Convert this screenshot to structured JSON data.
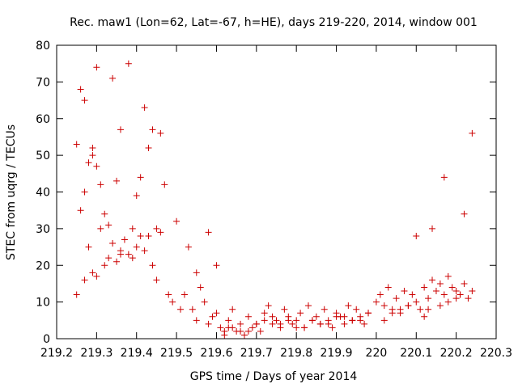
{
  "chart_data": {
    "type": "scatter",
    "title": "Rec. maw1 (Lon=62, Lat=-67, h=HE), days 219-220, 2014, window 001",
    "xlabel": "GPS time / Days of year 2014",
    "ylabel": "STEC from uqrg / TECUs",
    "xlim": [
      219.2,
      220.3
    ],
    "ylim": [
      0,
      80
    ],
    "xticks": [
      219.2,
      219.3,
      219.4,
      219.5,
      219.6,
      219.7,
      219.8,
      219.9,
      220.0,
      220.1,
      220.2,
      220.3
    ],
    "xtick_labels": [
      "219.2",
      "219.3",
      "219.4",
      "219.5",
      "219.6",
      "219.7",
      "219.8",
      "219.9",
      "220",
      "220.1",
      "220.2",
      "220.3"
    ],
    "yticks": [
      0,
      10,
      20,
      30,
      40,
      50,
      60,
      70,
      80
    ],
    "ytick_labels": [
      "0",
      "10",
      "20",
      "30",
      "40",
      "50",
      "60",
      "70",
      "80"
    ],
    "grid": false,
    "marker": "+",
    "color": "#cc0000",
    "series": [
      {
        "name": "STEC",
        "x": [
          219.25,
          219.25,
          219.26,
          219.27,
          219.28,
          219.29,
          219.29,
          219.3,
          219.31,
          219.32,
          219.34,
          219.35,
          219.36,
          219.38,
          219.42,
          219.43,
          219.44,
          219.46,
          219.47,
          219.41,
          219.4,
          219.39,
          219.37,
          219.33,
          219.3,
          219.27,
          219.26,
          219.28,
          219.31,
          219.34,
          219.36,
          219.39,
          219.41,
          219.44,
          219.45,
          219.48,
          219.49,
          219.5,
          219.51,
          219.53,
          219.55,
          219.56,
          219.58,
          219.6,
          219.52,
          219.54,
          219.57,
          219.59,
          219.61,
          219.62,
          219.63,
          219.64,
          219.65,
          219.66,
          219.67,
          219.68,
          219.69,
          219.7,
          219.71,
          219.72,
          219.73,
          219.74,
          219.75,
          219.76,
          219.77,
          219.78,
          219.79,
          219.8,
          219.81,
          219.82,
          219.83,
          219.84,
          219.85,
          219.86,
          219.87,
          219.88,
          219.89,
          219.9,
          219.91,
          219.92,
          219.93,
          219.94,
          219.95,
          219.96,
          219.97,
          219.98,
          220.0,
          220.01,
          220.02,
          220.03,
          220.04,
          220.05,
          220.06,
          220.07,
          220.08,
          220.09,
          220.1,
          220.11,
          220.12,
          220.13,
          220.14,
          220.15,
          220.16,
          220.17,
          220.18,
          220.19,
          220.2,
          220.21,
          220.22,
          220.23,
          220.24,
          220.1,
          220.14,
          220.17,
          220.22,
          220.24,
          219.62,
          219.64,
          219.66,
          219.7,
          219.74,
          219.78,
          219.82,
          219.86,
          219.9,
          219.94,
          219.98,
          220.02,
          220.06,
          220.12,
          220.16,
          220.2,
          219.55,
          219.58,
          219.6,
          219.63,
          219.68,
          219.72,
          219.76,
          219.8,
          219.84,
          219.88,
          219.92,
          219.96,
          220.04,
          220.08,
          220.13,
          220.18,
          220.21,
          219.27,
          219.3,
          219.33,
          219.36,
          219.4,
          219.43,
          219.46,
          219.29,
          219.32,
          219.35,
          219.38,
          219.42,
          219.45
        ],
        "y": [
          53,
          12,
          68,
          65,
          48,
          52,
          50,
          74,
          42,
          34,
          71,
          43,
          57,
          75,
          63,
          52,
          57,
          56,
          42,
          44,
          39,
          30,
          27,
          31,
          47,
          40,
          35,
          25,
          30,
          26,
          23,
          22,
          28,
          20,
          16,
          12,
          10,
          32,
          8,
          25,
          18,
          14,
          29,
          20,
          12,
          8,
          10,
          6,
          3,
          2,
          5,
          8,
          2,
          4,
          1,
          6,
          3,
          4,
          2,
          7,
          9,
          4,
          5,
          3,
          8,
          6,
          4,
          5,
          7,
          3,
          9,
          5,
          6,
          4,
          8,
          5,
          3,
          7,
          6,
          4,
          9,
          5,
          8,
          6,
          4,
          7,
          10,
          12,
          9,
          14,
          8,
          11,
          7,
          13,
          9,
          12,
          10,
          8,
          14,
          11,
          16,
          13,
          15,
          12,
          17,
          14,
          13,
          12,
          15,
          11,
          13,
          28,
          30,
          44,
          34,
          56,
          1,
          3,
          2,
          4,
          6,
          5,
          3,
          4,
          6,
          5,
          7,
          5,
          8,
          6,
          9,
          11,
          5,
          4,
          7,
          3,
          2,
          5,
          4,
          3,
          5,
          4,
          6,
          5,
          7,
          9,
          8,
          10,
          12,
          16,
          17,
          22,
          24,
          25,
          28,
          29,
          18,
          20,
          21,
          23,
          24,
          30
        ]
      }
    ]
  }
}
